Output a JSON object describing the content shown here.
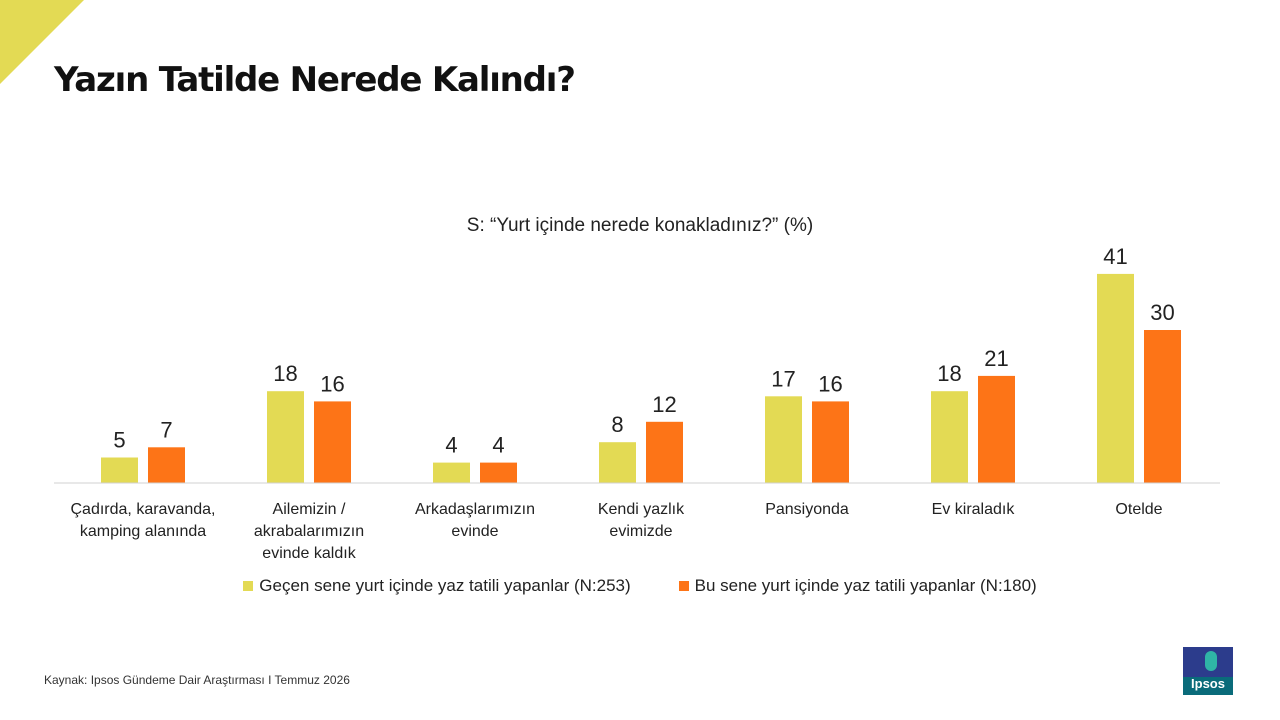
{
  "page": {
    "title": "Yazın Tatilde Nerede Kalındı?",
    "source": "Kaynak: Ipsos Gündeme Dair Araştırması I Temmuz 2026",
    "logo_text": "Ipsos"
  },
  "colors": {
    "accent": "#e3da54",
    "series_last_year": "#e3da54",
    "series_this_year": "#fd7417",
    "axis": "#d0d0d0"
  },
  "chart_data": {
    "type": "bar",
    "title": "S: “Yurt içinde nerede konakladınız?” (%)",
    "xlabel": "",
    "ylabel": "",
    "ylim": [
      0,
      45
    ],
    "grid": false,
    "legend_position": "bottom",
    "categories": [
      [
        "Çadırda, karavanda,",
        "kamping alanında"
      ],
      [
        "Ailemizin /",
        "akrabalarımızın",
        "evinde kaldık"
      ],
      [
        "Arkadaşlarımızın",
        "evinde"
      ],
      [
        "Kendi yazlık",
        "evimizde"
      ],
      [
        "Pansiyonda"
      ],
      [
        "Ev kiraladık"
      ],
      [
        "Otelde"
      ]
    ],
    "series": [
      {
        "name": "Geçen sene yurt içinde yaz tatili yapanlar (N:253)",
        "values": [
          5,
          18,
          4,
          8,
          17,
          18,
          41
        ]
      },
      {
        "name": "Bu sene yurt içinde yaz tatili yapanlar (N:180)",
        "values": [
          7,
          16,
          4,
          12,
          16,
          21,
          30
        ]
      }
    ]
  }
}
